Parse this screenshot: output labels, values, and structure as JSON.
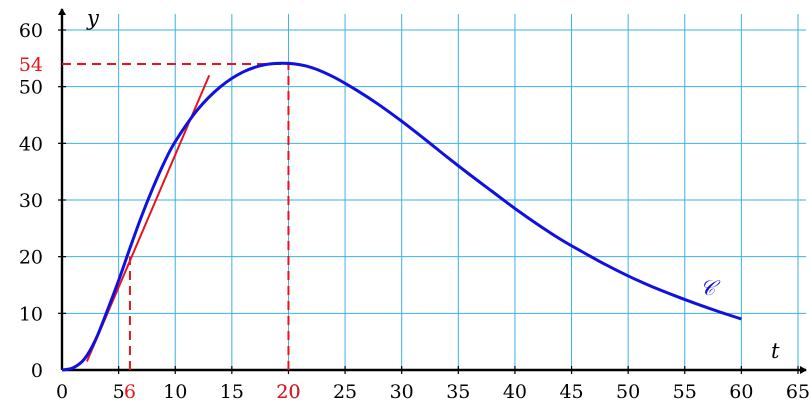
{
  "chart_data": {
    "type": "line",
    "title": "",
    "xlabel": "t",
    "ylabel": "y",
    "xlim": [
      0,
      65
    ],
    "ylim": [
      0,
      60
    ],
    "grid": true,
    "x_ticks": [
      0,
      5,
      10,
      15,
      20,
      25,
      30,
      35,
      40,
      45,
      50,
      55,
      60,
      65
    ],
    "y_ticks": [
      0,
      10,
      20,
      30,
      40,
      50,
      60
    ],
    "highlight_x_ticks": [
      6,
      20
    ],
    "highlight_y_ticks": [
      54
    ],
    "series": [
      {
        "name": "𝒞",
        "color": "#1010e0",
        "x": [
          0,
          1,
          2,
          3,
          4,
          5,
          6,
          7,
          8,
          9,
          10,
          12,
          14,
          16,
          18,
          20,
          22,
          24,
          26,
          28,
          30,
          32,
          34,
          36,
          38,
          40,
          42,
          44,
          46,
          48,
          50,
          52,
          54,
          56,
          58,
          60
        ],
        "y": [
          0,
          0.4,
          2.0,
          5.5,
          10.5,
          15.8,
          21.5,
          27.0,
          32.0,
          36.5,
          40.3,
          46.0,
          50.0,
          52.6,
          53.9,
          54.1,
          53.4,
          51.7,
          49.4,
          46.8,
          43.9,
          40.8,
          37.6,
          34.5,
          31.5,
          28.5,
          25.7,
          23.1,
          20.8,
          18.6,
          16.6,
          14.8,
          13.2,
          11.7,
          10.3,
          9.0
        ]
      }
    ],
    "annotations": [
      {
        "type": "tangent_line",
        "color": "#e8141c",
        "x_start": 2.2,
        "y_start": 1.5,
        "x_end": 13,
        "y_end": 52
      },
      {
        "type": "dashed_guide",
        "color": "#e8141c",
        "x": 6,
        "y": 20
      },
      {
        "type": "dashed_guide",
        "color": "#e8141c",
        "x": 20,
        "y": 54
      }
    ]
  }
}
